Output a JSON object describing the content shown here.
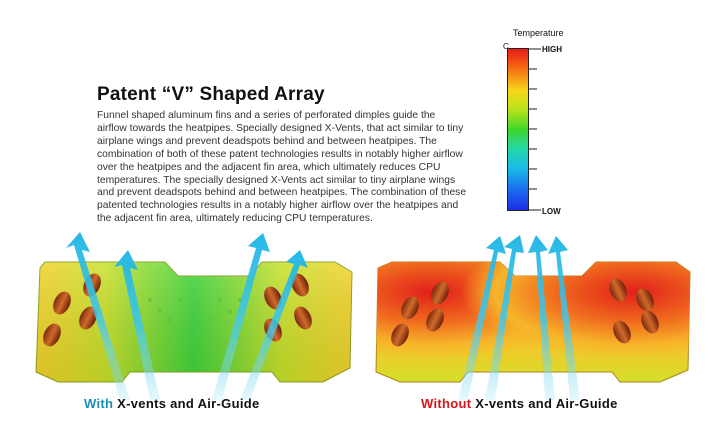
{
  "title": "Patent “V” Shaped Array",
  "description": "Funnel shaped aluminum fins and a series of perforated dimples guide the airflow towards the heatpipes. Specially designed X-Vents, that act similar to tiny airplane wings and prevent deadspots behind and between heatpipes. The combination of both of these patent technologies results in notably higher airflow over the heatpipes and the adjacent fin area, which ultimately reduces CPU temperatures. The specially designed X-Vents act similar to tiny airplane wings and prevent deadspots behind and between heatpipes. The combination of these patented technologies results in a notably higher airflow over the heatpipes and the adjacent fin area, ultimately reducing CPU temperatures.",
  "legend": {
    "title": "Temperature",
    "unit": "C",
    "high": "HIGH",
    "low": "LOW",
    "colors": [
      "#e81d19",
      "#f46b14",
      "#f7d81a",
      "#b6e21c",
      "#3fd62a",
      "#22d7a8",
      "#1bbbe8",
      "#1a6af0",
      "#1d2ce6"
    ]
  },
  "captions": {
    "left_prefix": "With",
    "left_suffix": "X-vents and Air-Guide",
    "right_prefix": "Without",
    "right_suffix": "X-vents and Air-Guide"
  }
}
